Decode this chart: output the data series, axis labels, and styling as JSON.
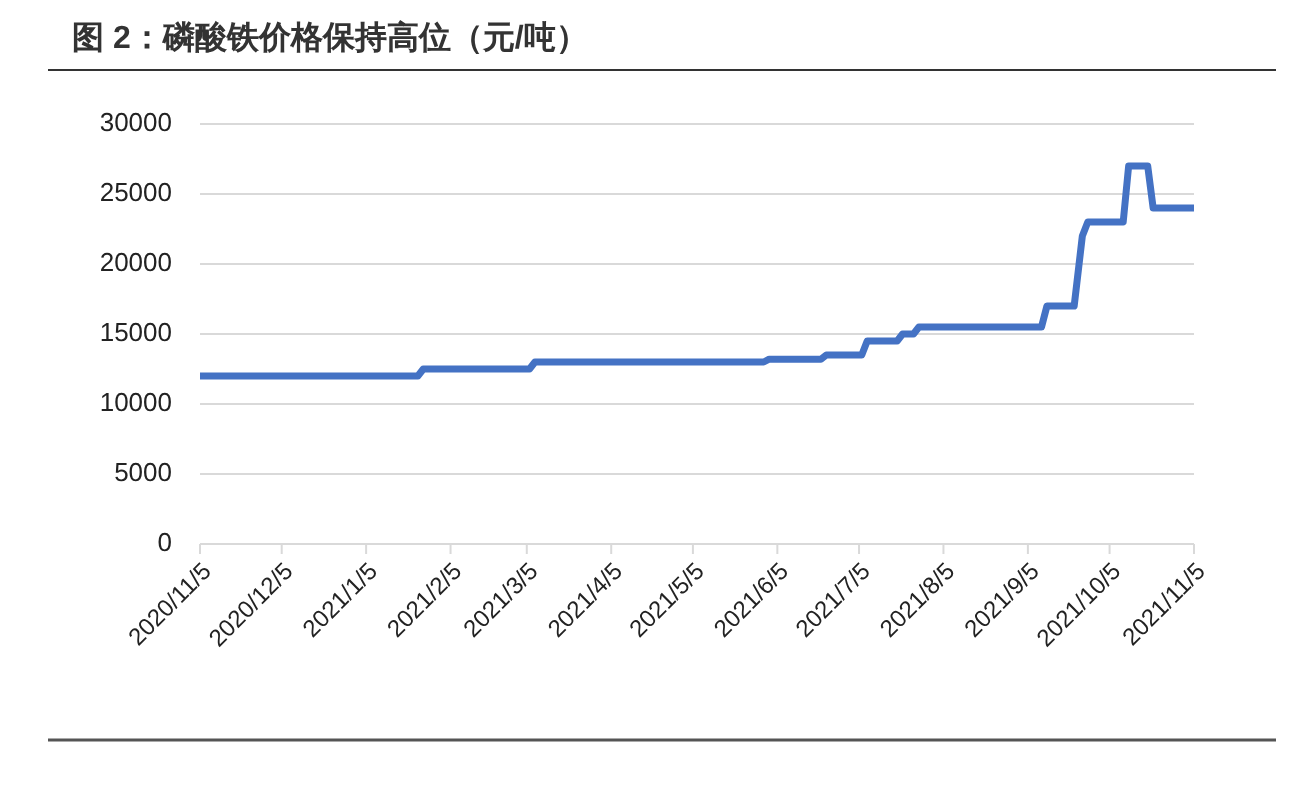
{
  "chart_data": {
    "type": "line",
    "title": "图 2：磷酸铁价格保持高位（元/吨）",
    "x": [
      "2020-11-05",
      "2021-01-24",
      "2021-01-26",
      "2021-03-06",
      "2021-03-08",
      "2021-05-31",
      "2021-06-02",
      "2021-06-21",
      "2021-06-23",
      "2021-07-06",
      "2021-07-08",
      "2021-07-19",
      "2021-07-21",
      "2021-07-25",
      "2021-07-27",
      "2021-09-10",
      "2021-09-12",
      "2021-09-22",
      "2021-09-25",
      "2021-09-27",
      "2021-10-10",
      "2021-10-12",
      "2021-10-19",
      "2021-10-21",
      "2021-11-05"
    ],
    "series": [
      {
        "color": "#4472c4",
        "values": [
          12000,
          12000,
          12500,
          12500,
          13000,
          13000,
          13200,
          13200,
          13500,
          13500,
          14500,
          14500,
          15000,
          15000,
          15500,
          15500,
          17000,
          17000,
          22000,
          23000,
          23000,
          27000,
          27000,
          24000,
          24000
        ]
      }
    ],
    "xlim": [
      "2020-11-05",
      "2021-11-05"
    ],
    "xticks": [
      {
        "value": "2020-11-05",
        "label": "2020/11/5"
      },
      {
        "value": "2020-12-05",
        "label": "2020/12/5"
      },
      {
        "value": "2021-01-05",
        "label": "2021/1/5"
      },
      {
        "value": "2021-02-05",
        "label": "2021/2/5"
      },
      {
        "value": "2021-03-05",
        "label": "2021/3/5"
      },
      {
        "value": "2021-04-05",
        "label": "2021/4/5"
      },
      {
        "value": "2021-05-05",
        "label": "2021/5/5"
      },
      {
        "value": "2021-06-05",
        "label": "2021/6/5"
      },
      {
        "value": "2021-07-05",
        "label": "2021/7/5"
      },
      {
        "value": "2021-08-05",
        "label": "2021/8/5"
      },
      {
        "value": "2021-09-05",
        "label": "2021/9/5"
      },
      {
        "value": "2021-10-05",
        "label": "2021/10/5"
      },
      {
        "value": "2021-11-05",
        "label": "2021/11/5"
      }
    ],
    "ylim": [
      0,
      30000
    ],
    "yticks": [
      0,
      5000,
      10000,
      15000,
      20000,
      25000,
      30000
    ],
    "grid": "y",
    "marker": "none",
    "line_style": "solid"
  }
}
